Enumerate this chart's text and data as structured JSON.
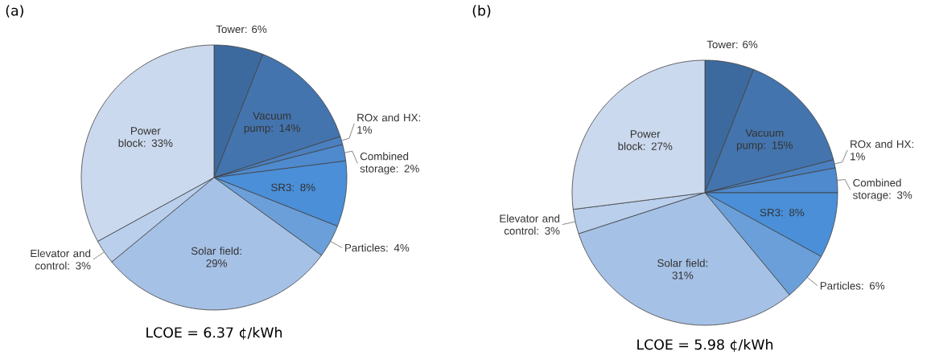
{
  "chart_data": [
    {
      "type": "pie",
      "title": "(a)",
      "categories": [
        "Tower",
        "Vacuum pump",
        "ROx and HX",
        "Combined storage",
        "SR3",
        "Particles",
        "Solar field",
        "Elevator and control",
        "Power block"
      ],
      "values": [
        6,
        14,
        1,
        2,
        8,
        4,
        29,
        3,
        33
      ],
      "value_labels": [
        ": 6%",
        ": 14%",
        ": 1%",
        ": 2%",
        ": 8%",
        ": 4%",
        ": 29%",
        ": 3%",
        ": 33%"
      ],
      "colors": [
        "#3d6a9e",
        "#4474ad",
        "#4a80c0",
        "#4f8ace",
        "#4a8fd8",
        "#6a9fd9",
        "#a6c1e6",
        "#b9cfec",
        "#cbd9ee"
      ],
      "annotations": [
        "LCOE = 6.37 ¢/kWh"
      ]
    },
    {
      "type": "pie",
      "title": "(b)",
      "categories": [
        "Tower",
        "Vacuum pump",
        "ROx and HX",
        "Combined storage",
        "SR3",
        "Particles",
        "Solar field",
        "Elevator and control",
        "Power block"
      ],
      "values": [
        6,
        15,
        1,
        3,
        8,
        6,
        31,
        3,
        27
      ],
      "value_labels": [
        ": 6%",
        ": 15%",
        ": 1%",
        ": 3%",
        ": 8%",
        ": 6%",
        ": 31%",
        ": 3%",
        ": 27%"
      ],
      "colors": [
        "#3d6a9e",
        "#4474ad",
        "#4a80c0",
        "#4f8ace",
        "#4a8fd8",
        "#6a9fd9",
        "#a6c1e6",
        "#b9cfec",
        "#cbd9ee"
      ],
      "annotations": [
        "LCOE = 5.98 ¢/kWh"
      ]
    }
  ]
}
